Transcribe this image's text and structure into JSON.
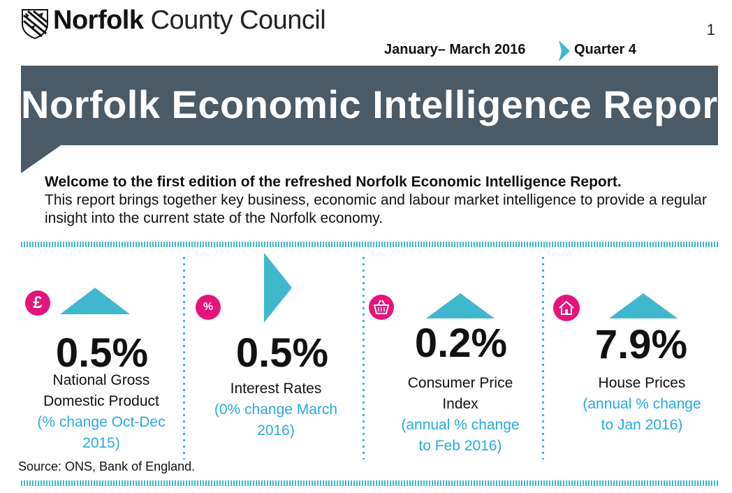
{
  "header": {
    "org_bold": "Norfolk",
    "org_light": "County Council",
    "page_number": "1",
    "period": "January– March 2016",
    "quarter": "Quarter 4"
  },
  "banner": {
    "title": "Norfolk Economic Intelligence Report"
  },
  "intro": {
    "lead": "Welcome to the first edition of the refreshed Norfolk Economic Intelligence Report.",
    "body": "This report brings together key business, economic and labour market intelligence to provide a regular insight into the current state of the Norfolk economy."
  },
  "indicators": [
    {
      "icon": "pound-icon",
      "symbol": "£",
      "trend": "up",
      "value": "0.5%",
      "label_lines": [
        "National Gross",
        "Domestic Product"
      ],
      "note_lines": [
        "(% change Oct-Dec",
        "2015)"
      ]
    },
    {
      "icon": "percent-icon",
      "symbol": "%",
      "trend": "flat",
      "value": "0.5%",
      "label_lines": [
        "Interest Rates"
      ],
      "note_lines": [
        "(0% change March",
        "2016)"
      ]
    },
    {
      "icon": "basket-icon",
      "symbol": "",
      "trend": "up",
      "value": "0.2%",
      "label_lines": [
        "Consumer Price",
        "Index"
      ],
      "note_lines": [
        "(annual % change",
        "to Feb 2016)"
      ]
    },
    {
      "icon": "house-icon",
      "symbol": "",
      "trend": "up",
      "value": "7.9%",
      "label_lines": [
        "House Prices"
      ],
      "note_lines": [
        "(annual % change",
        "to Jan 2016)"
      ]
    }
  ],
  "source": "Source: ONS, Bank of England.",
  "colors": {
    "banner": "#4a5a67",
    "accent_teal": "#3fb8cd",
    "accent_pink": "#e4147a",
    "note_blue": "#29a9e0"
  }
}
